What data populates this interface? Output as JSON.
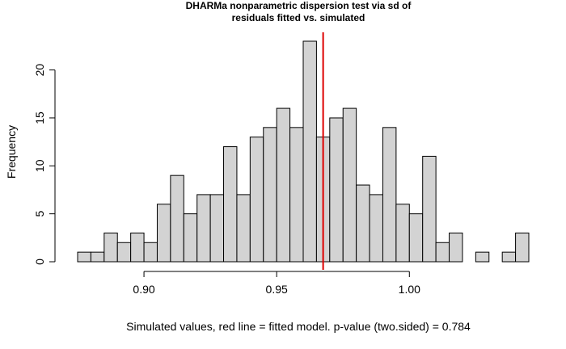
{
  "chart_data": {
    "type": "bar",
    "title_line1": "DHARMa nonparametric dispersion test via sd of",
    "title_line2": "residuals fitted vs. simulated",
    "xlabel": "Simulated values, red line = fitted model. p-value (two.sided) = 0.784",
    "ylabel": "Frequency",
    "bin_start": 0.875,
    "bin_width": 0.005,
    "values": [
      1,
      1,
      3,
      2,
      3,
      2,
      6,
      9,
      5,
      7,
      7,
      12,
      7,
      13,
      14,
      16,
      14,
      23,
      13,
      15,
      16,
      8,
      7,
      14,
      6,
      5,
      11,
      2,
      3,
      0,
      1,
      0,
      1,
      3
    ],
    "xlim": [
      0.875,
      1.045
    ],
    "ylim": [
      0,
      23
    ],
    "x_ticks": [
      0.9,
      0.95,
      1.0
    ],
    "x_tick_labels": [
      "0.90",
      "0.95",
      "1.00"
    ],
    "y_ticks": [
      0,
      5,
      10,
      15,
      20
    ],
    "y_tick_labels": [
      "0",
      "5",
      "10",
      "15",
      "20"
    ],
    "observed_value": 0.9675,
    "bar_color": "#d3d3d3",
    "line_color": "#dd0000"
  }
}
